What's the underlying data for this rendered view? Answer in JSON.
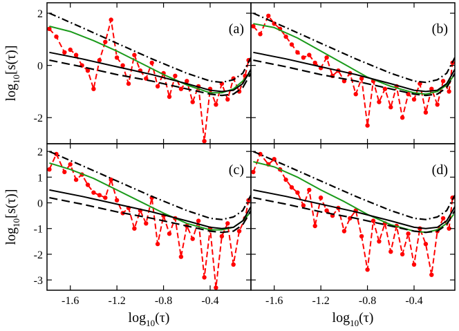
{
  "chart_data": [
    {
      "panel": "a",
      "type": "line",
      "label": "(a)",
      "xlabel": {
        "main": "log",
        "sub": "10",
        "arg": "(τ)"
      },
      "ylabel": {
        "main": "log",
        "sub": "10",
        "arg": "[s(τ)]"
      },
      "xlim": [
        -1.8,
        -0.05
      ],
      "ylim": [
        -3,
        2.4
      ],
      "xticks": [
        -1.6,
        -1.2,
        -0.8,
        -0.4
      ],
      "xtick_labels": [
        "-1.6",
        "-1.2",
        "-0.8",
        "-0.4"
      ],
      "yticks": [
        -2,
        0,
        2
      ],
      "ytick_labels": [
        "-2",
        "0",
        "2"
      ],
      "series": [
        {
          "name": "data",
          "style": "red-dashed-markers",
          "color": "#ff0000",
          "x": [
            -1.78,
            -1.72,
            -1.65,
            -1.6,
            -1.55,
            -1.5,
            -1.45,
            -1.4,
            -1.35,
            -1.3,
            -1.25,
            -1.2,
            -1.15,
            -1.1,
            -1.05,
            -1.0,
            -0.95,
            -0.9,
            -0.85,
            -0.8,
            -0.75,
            -0.7,
            -0.65,
            -0.6,
            -0.55,
            -0.5,
            -0.45,
            -0.4,
            -0.35,
            -0.3,
            -0.25,
            -0.2,
            -0.15,
            -0.1,
            -0.07
          ],
          "y": [
            1.4,
            1.1,
            0.5,
            0.6,
            0.4,
            0.0,
            -0.2,
            -0.9,
            0.2,
            0.9,
            1.75,
            0.3,
            0.0,
            -0.7,
            0.4,
            -0.2,
            -0.5,
            0.1,
            -0.8,
            -0.3,
            -1.2,
            -0.4,
            -0.9,
            -0.6,
            -1.4,
            -0.8,
            -2.9,
            -0.9,
            -1.5,
            -0.7,
            -1.3,
            -0.5,
            -1.0,
            -0.4,
            0.2
          ]
        },
        {
          "name": "running average",
          "style": "green-solid",
          "color": "#1a9a1a",
          "x": [
            -1.78,
            -1.6,
            -1.4,
            -1.2,
            -1.0,
            -0.8,
            -0.6,
            -0.4,
            -0.3,
            -0.2,
            -0.12,
            -0.06
          ],
          "y": [
            1.5,
            1.3,
            0.95,
            0.55,
            0.1,
            -0.35,
            -0.75,
            -1.05,
            -1.05,
            -0.9,
            -0.6,
            -0.3
          ]
        },
        {
          "name": "fit dash-dot",
          "style": "black-dashdot",
          "color": "#000000",
          "x": [
            -1.78,
            -1.5,
            -1.2,
            -0.9,
            -0.6,
            -0.4,
            -0.3,
            -0.2,
            -0.12,
            -0.05
          ],
          "y": [
            2.0,
            1.45,
            0.85,
            0.25,
            -0.3,
            -0.6,
            -0.65,
            -0.55,
            -0.3,
            0.3
          ]
        },
        {
          "name": "fit solid",
          "style": "black-solid",
          "color": "#000000",
          "x": [
            -1.78,
            -1.5,
            -1.2,
            -0.9,
            -0.6,
            -0.4,
            -0.3,
            -0.2,
            -0.12,
            -0.05
          ],
          "y": [
            0.5,
            0.25,
            -0.05,
            -0.35,
            -0.7,
            -0.95,
            -1.0,
            -0.95,
            -0.7,
            -0.15
          ]
        },
        {
          "name": "fit dashed",
          "style": "black-dashed",
          "color": "#000000",
          "x": [
            -1.78,
            -1.5,
            -1.2,
            -0.9,
            -0.6,
            -0.4,
            -0.3,
            -0.2,
            -0.12,
            -0.05
          ],
          "y": [
            0.2,
            -0.05,
            -0.35,
            -0.6,
            -0.9,
            -1.1,
            -1.15,
            -1.1,
            -0.85,
            -0.3
          ]
        }
      ]
    },
    {
      "panel": "b",
      "type": "line",
      "label": "(b)",
      "xlabel": {
        "main": "log",
        "sub": "10",
        "arg": "(τ)"
      },
      "ylabel": {
        "main": "",
        "sub": "",
        "arg": ""
      },
      "xlim": [
        -1.8,
        -0.05
      ],
      "ylim": [
        -3,
        2.4
      ],
      "xticks": [
        -1.6,
        -1.2,
        -0.8,
        -0.4
      ],
      "xtick_labels": [
        "-1.6",
        "-1.2",
        "-0.8",
        "-0.4"
      ],
      "yticks": [
        -2,
        0,
        2
      ],
      "ytick_labels": [
        "",
        "",
        ""
      ],
      "series": [
        {
          "name": "data",
          "style": "red-dashed-markers",
          "color": "#ff0000",
          "x": [
            -1.78,
            -1.72,
            -1.65,
            -1.6,
            -1.55,
            -1.5,
            -1.45,
            -1.4,
            -1.35,
            -1.3,
            -1.25,
            -1.2,
            -1.15,
            -1.1,
            -1.05,
            -1.0,
            -0.95,
            -0.9,
            -0.85,
            -0.8,
            -0.75,
            -0.7,
            -0.65,
            -0.6,
            -0.55,
            -0.5,
            -0.45,
            -0.4,
            -0.35,
            -0.3,
            -0.25,
            -0.2,
            -0.15,
            -0.1,
            -0.07
          ],
          "y": [
            1.5,
            1.2,
            1.9,
            1.6,
            1.4,
            1.1,
            0.8,
            0.5,
            0.3,
            0.4,
            0.1,
            -0.1,
            0.3,
            -0.4,
            -0.2,
            -0.6,
            -0.3,
            -1.1,
            -0.5,
            -2.3,
            -0.6,
            -1.4,
            -0.9,
            -1.6,
            -0.8,
            -2.0,
            -1.1,
            -1.3,
            -0.7,
            -1.8,
            -0.9,
            -1.5,
            -0.6,
            -1.0,
            0.1
          ]
        },
        {
          "name": "running average",
          "style": "green-solid",
          "color": "#1a9a1a",
          "x": [
            -1.78,
            -1.6,
            -1.4,
            -1.2,
            -1.0,
            -0.8,
            -0.6,
            -0.4,
            -0.3,
            -0.2,
            -0.12,
            -0.06
          ],
          "y": [
            1.6,
            1.45,
            1.05,
            0.55,
            0.05,
            -0.45,
            -0.8,
            -1.05,
            -1.1,
            -1.0,
            -0.75,
            -0.4
          ]
        },
        {
          "name": "fit dash-dot",
          "style": "black-dashdot",
          "color": "#000000",
          "x": [
            -1.78,
            -1.5,
            -1.2,
            -0.9,
            -0.6,
            -0.4,
            -0.3,
            -0.2,
            -0.12,
            -0.05
          ],
          "y": [
            2.0,
            1.45,
            0.85,
            0.25,
            -0.3,
            -0.6,
            -0.65,
            -0.55,
            -0.3,
            0.3
          ]
        },
        {
          "name": "fit solid",
          "style": "black-solid",
          "color": "#000000",
          "x": [
            -1.78,
            -1.5,
            -1.2,
            -0.9,
            -0.6,
            -0.4,
            -0.3,
            -0.2,
            -0.12,
            -0.05
          ],
          "y": [
            0.5,
            0.25,
            -0.05,
            -0.35,
            -0.7,
            -0.95,
            -1.0,
            -0.95,
            -0.7,
            -0.15
          ]
        },
        {
          "name": "fit dashed",
          "style": "black-dashed",
          "color": "#000000",
          "x": [
            -1.78,
            -1.5,
            -1.2,
            -0.9,
            -0.6,
            -0.4,
            -0.3,
            -0.2,
            -0.12,
            -0.05
          ],
          "y": [
            0.2,
            -0.05,
            -0.35,
            -0.6,
            -0.9,
            -1.1,
            -1.15,
            -1.1,
            -0.85,
            -0.3
          ]
        }
      ]
    },
    {
      "panel": "c",
      "type": "line",
      "label": "(c)",
      "xlabel": {
        "main": "log",
        "sub": "10",
        "arg": "(τ)"
      },
      "ylabel": {
        "main": "log",
        "sub": "10",
        "arg": "[s(τ)]"
      },
      "xlim": [
        -1.8,
        -0.05
      ],
      "ylim": [
        -3.4,
        2.3
      ],
      "xticks": [
        -1.6,
        -1.2,
        -0.8,
        -0.4
      ],
      "xtick_labels": [
        "-1.6",
        "-1.2",
        "-0.8",
        "-0.4"
      ],
      "yticks": [
        -3,
        -2,
        -1,
        0,
        1,
        2
      ],
      "ytick_labels": [
        "-3",
        "-2",
        "-1",
        "0",
        "1",
        "2"
      ],
      "series": [
        {
          "name": "data",
          "style": "red-dashed-markers",
          "color": "#ff0000",
          "x": [
            -1.78,
            -1.72,
            -1.65,
            -1.6,
            -1.55,
            -1.5,
            -1.45,
            -1.4,
            -1.35,
            -1.3,
            -1.25,
            -1.2,
            -1.15,
            -1.1,
            -1.05,
            -1.0,
            -0.95,
            -0.9,
            -0.85,
            -0.8,
            -0.75,
            -0.7,
            -0.65,
            -0.6,
            -0.55,
            -0.5,
            -0.45,
            -0.4,
            -0.35,
            -0.3,
            -0.25,
            -0.2,
            -0.15,
            -0.1,
            -0.07
          ],
          "y": [
            1.3,
            1.9,
            1.2,
            1.5,
            0.9,
            1.1,
            0.7,
            0.4,
            0.3,
            0.2,
            0.9,
            0.1,
            -0.4,
            -0.2,
            -1.0,
            -0.3,
            -0.8,
            0.2,
            -1.6,
            -0.5,
            -1.2,
            -0.6,
            -2.1,
            -0.9,
            -1.4,
            -0.7,
            -2.9,
            -1.0,
            -3.3,
            -1.3,
            -0.8,
            -2.4,
            -1.1,
            -0.6,
            0.1
          ]
        },
        {
          "name": "running average",
          "style": "green-solid",
          "color": "#1a9a1a",
          "x": [
            -1.78,
            -1.6,
            -1.4,
            -1.2,
            -1.0,
            -0.8,
            -0.6,
            -0.4,
            -0.3,
            -0.2,
            -0.12,
            -0.06
          ],
          "y": [
            1.55,
            1.3,
            0.95,
            0.5,
            0.05,
            -0.4,
            -0.8,
            -1.05,
            -1.05,
            -0.95,
            -0.7,
            -0.4
          ]
        },
        {
          "name": "fit dash-dot",
          "style": "black-dashdot",
          "color": "#000000",
          "x": [
            -1.78,
            -1.5,
            -1.2,
            -0.9,
            -0.6,
            -0.4,
            -0.3,
            -0.2,
            -0.12,
            -0.05
          ],
          "y": [
            2.0,
            1.45,
            0.85,
            0.25,
            -0.3,
            -0.6,
            -0.65,
            -0.55,
            -0.3,
            0.3
          ]
        },
        {
          "name": "fit solid",
          "style": "black-solid",
          "color": "#000000",
          "x": [
            -1.78,
            -1.5,
            -1.2,
            -0.9,
            -0.6,
            -0.4,
            -0.3,
            -0.2,
            -0.12,
            -0.05
          ],
          "y": [
            0.5,
            0.25,
            -0.05,
            -0.35,
            -0.7,
            -0.95,
            -1.0,
            -0.95,
            -0.7,
            -0.15
          ]
        },
        {
          "name": "fit dashed",
          "style": "black-dashed",
          "color": "#000000",
          "x": [
            -1.78,
            -1.5,
            -1.2,
            -0.9,
            -0.6,
            -0.4,
            -0.3,
            -0.2,
            -0.12,
            -0.05
          ],
          "y": [
            0.2,
            -0.05,
            -0.35,
            -0.6,
            -0.9,
            -1.1,
            -1.15,
            -1.1,
            -0.85,
            -0.3
          ]
        }
      ]
    },
    {
      "panel": "d",
      "type": "line",
      "label": "(d)",
      "xlabel": {
        "main": "log",
        "sub": "10",
        "arg": "(τ)"
      },
      "ylabel": {
        "main": "",
        "sub": "",
        "arg": ""
      },
      "xlim": [
        -1.8,
        -0.05
      ],
      "ylim": [
        -3.4,
        2.3
      ],
      "xticks": [
        -1.6,
        -1.2,
        -0.8,
        -0.4
      ],
      "xtick_labels": [
        "-1.6",
        "-1.2",
        "-0.8",
        "-0.4"
      ],
      "yticks": [
        -3,
        -2,
        -1,
        0,
        1,
        2
      ],
      "ytick_labels": [
        "",
        "",
        "",
        "",
        "",
        ""
      ],
      "series": [
        {
          "name": "data",
          "style": "red-dashed-markers",
          "color": "#ff0000",
          "x": [
            -1.78,
            -1.72,
            -1.65,
            -1.6,
            -1.55,
            -1.5,
            -1.45,
            -1.4,
            -1.35,
            -1.3,
            -1.25,
            -1.2,
            -1.15,
            -1.1,
            -1.05,
            -1.0,
            -0.95,
            -0.9,
            -0.85,
            -0.8,
            -0.75,
            -0.7,
            -0.65,
            -0.6,
            -0.55,
            -0.5,
            -0.45,
            -0.4,
            -0.35,
            -0.3,
            -0.25,
            -0.2,
            -0.15,
            -0.1,
            -0.07
          ],
          "y": [
            1.2,
            1.9,
            1.5,
            1.7,
            1.3,
            0.9,
            0.6,
            0.4,
            -0.1,
            0.5,
            -0.9,
            0.2,
            -0.3,
            -0.5,
            -0.2,
            -1.1,
            -0.6,
            -0.3,
            -1.3,
            -2.6,
            -0.7,
            -1.5,
            -0.8,
            -1.9,
            -0.9,
            -2.0,
            -1.2,
            -2.4,
            -1.0,
            -1.6,
            -2.8,
            -1.1,
            -0.6,
            -1.0,
            0.2
          ]
        },
        {
          "name": "running average",
          "style": "green-solid",
          "color": "#1a9a1a",
          "x": [
            -1.78,
            -1.6,
            -1.4,
            -1.2,
            -1.0,
            -0.8,
            -0.6,
            -0.4,
            -0.3,
            -0.2,
            -0.12,
            -0.06
          ],
          "y": [
            1.6,
            1.4,
            1.0,
            0.5,
            0.05,
            -0.45,
            -0.85,
            -1.1,
            -1.15,
            -1.05,
            -0.8,
            -0.45
          ]
        },
        {
          "name": "fit dash-dot",
          "style": "black-dashdot",
          "color": "#000000",
          "x": [
            -1.78,
            -1.5,
            -1.2,
            -0.9,
            -0.6,
            -0.4,
            -0.3,
            -0.2,
            -0.12,
            -0.05
          ],
          "y": [
            2.0,
            1.45,
            0.85,
            0.25,
            -0.3,
            -0.6,
            -0.65,
            -0.55,
            -0.3,
            0.3
          ]
        },
        {
          "name": "fit solid",
          "style": "black-solid",
          "color": "#000000",
          "x": [
            -1.78,
            -1.5,
            -1.2,
            -0.9,
            -0.6,
            -0.4,
            -0.3,
            -0.2,
            -0.12,
            -0.05
          ],
          "y": [
            0.5,
            0.25,
            -0.05,
            -0.35,
            -0.7,
            -0.95,
            -1.0,
            -0.95,
            -0.7,
            -0.15
          ]
        },
        {
          "name": "fit dashed",
          "style": "black-dashed",
          "color": "#000000",
          "x": [
            -1.78,
            -1.5,
            -1.2,
            -0.9,
            -0.6,
            -0.4,
            -0.3,
            -0.2,
            -0.12,
            -0.05
          ],
          "y": [
            0.2,
            -0.05,
            -0.35,
            -0.6,
            -0.9,
            -1.1,
            -1.15,
            -1.1,
            -0.85,
            -0.3
          ]
        }
      ]
    }
  ]
}
